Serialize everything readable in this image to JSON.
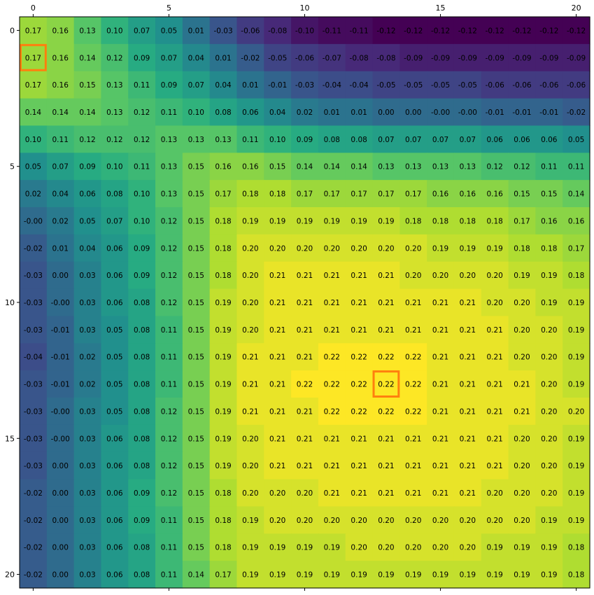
{
  "chart_data": {
    "type": "heatmap",
    "title": "",
    "xlabel": "",
    "ylabel": "",
    "x_axis_position": "top",
    "colormap": "viridis",
    "value_range": [
      -0.12,
      0.22
    ],
    "x_tick_labels": [
      "0",
      "5",
      "10",
      "15",
      "20"
    ],
    "x_tick_values": [
      0,
      5,
      10,
      15,
      20
    ],
    "y_tick_labels": [
      "0",
      "5",
      "10",
      "15",
      "20"
    ],
    "y_tick_values": [
      0,
      5,
      10,
      15,
      20
    ],
    "grid": false,
    "highlight_color": "#ff7f0e",
    "highlighted_cells": [
      {
        "row": 1,
        "col": 0
      },
      {
        "row": 13,
        "col": 13
      }
    ],
    "values": [
      [
        "0.17",
        "0.16",
        "0.13",
        "0.10",
        "0.07",
        "0.05",
        "0.01",
        "-0.03",
        "-0.06",
        "-0.08",
        "-0.10",
        "-0.11",
        "-0.11",
        "-0.12",
        "-0.12",
        "-0.12",
        "-0.12",
        "-0.12",
        "-0.12",
        "-0.12",
        "-0.12"
      ],
      [
        "0.17",
        "0.16",
        "0.14",
        "0.12",
        "0.09",
        "0.07",
        "0.04",
        "0.01",
        "-0.02",
        "-0.05",
        "-0.06",
        "-0.07",
        "-0.08",
        "-0.08",
        "-0.09",
        "-0.09",
        "-0.09",
        "-0.09",
        "-0.09",
        "-0.09",
        "-0.09"
      ],
      [
        "0.17",
        "0.16",
        "0.15",
        "0.13",
        "0.11",
        "0.09",
        "0.07",
        "0.04",
        "0.01",
        "-0.01",
        "-0.03",
        "-0.04",
        "-0.04",
        "-0.05",
        "-0.05",
        "-0.05",
        "-0.05",
        "-0.06",
        "-0.06",
        "-0.06",
        "-0.06"
      ],
      [
        "0.14",
        "0.14",
        "0.14",
        "0.13",
        "0.12",
        "0.11",
        "0.10",
        "0.08",
        "0.06",
        "0.04",
        "0.02",
        "0.01",
        "0.01",
        "0.00",
        "0.00",
        "-0.00",
        "-0.00",
        "-0.01",
        "-0.01",
        "-0.01",
        "-0.02"
      ],
      [
        "0.10",
        "0.11",
        "0.12",
        "0.12",
        "0.12",
        "0.13",
        "0.13",
        "0.13",
        "0.11",
        "0.10",
        "0.09",
        "0.08",
        "0.08",
        "0.07",
        "0.07",
        "0.07",
        "0.07",
        "0.06",
        "0.06",
        "0.06",
        "0.05"
      ],
      [
        "0.05",
        "0.07",
        "0.09",
        "0.10",
        "0.11",
        "0.13",
        "0.15",
        "0.16",
        "0.16",
        "0.15",
        "0.14",
        "0.14",
        "0.14",
        "0.13",
        "0.13",
        "0.13",
        "0.13",
        "0.12",
        "0.12",
        "0.11",
        "0.11"
      ],
      [
        "0.02",
        "0.04",
        "0.06",
        "0.08",
        "0.10",
        "0.13",
        "0.15",
        "0.17",
        "0.18",
        "0.18",
        "0.17",
        "0.17",
        "0.17",
        "0.17",
        "0.17",
        "0.16",
        "0.16",
        "0.16",
        "0.15",
        "0.15",
        "0.14"
      ],
      [
        "-0.00",
        "0.02",
        "0.05",
        "0.07",
        "0.10",
        "0.12",
        "0.15",
        "0.18",
        "0.19",
        "0.19",
        "0.19",
        "0.19",
        "0.19",
        "0.19",
        "0.18",
        "0.18",
        "0.18",
        "0.18",
        "0.17",
        "0.16",
        "0.16"
      ],
      [
        "-0.02",
        "0.01",
        "0.04",
        "0.06",
        "0.09",
        "0.12",
        "0.15",
        "0.18",
        "0.20",
        "0.20",
        "0.20",
        "0.20",
        "0.20",
        "0.20",
        "0.20",
        "0.19",
        "0.19",
        "0.19",
        "0.18",
        "0.18",
        "0.17"
      ],
      [
        "-0.03",
        "0.00",
        "0.03",
        "0.06",
        "0.09",
        "0.12",
        "0.15",
        "0.18",
        "0.20",
        "0.21",
        "0.21",
        "0.21",
        "0.21",
        "0.21",
        "0.20",
        "0.20",
        "0.20",
        "0.20",
        "0.19",
        "0.19",
        "0.18"
      ],
      [
        "-0.03",
        "-0.00",
        "0.03",
        "0.06",
        "0.08",
        "0.12",
        "0.15",
        "0.19",
        "0.20",
        "0.21",
        "0.21",
        "0.21",
        "0.21",
        "0.21",
        "0.21",
        "0.21",
        "0.21",
        "0.20",
        "0.20",
        "0.19",
        "0.19"
      ],
      [
        "-0.03",
        "-0.01",
        "0.03",
        "0.05",
        "0.08",
        "0.11",
        "0.15",
        "0.19",
        "0.20",
        "0.21",
        "0.21",
        "0.21",
        "0.21",
        "0.21",
        "0.21",
        "0.21",
        "0.21",
        "0.21",
        "0.20",
        "0.20",
        "0.19"
      ],
      [
        "-0.04",
        "-0.01",
        "0.02",
        "0.05",
        "0.08",
        "0.11",
        "0.15",
        "0.19",
        "0.21",
        "0.21",
        "0.21",
        "0.22",
        "0.22",
        "0.22",
        "0.22",
        "0.21",
        "0.21",
        "0.21",
        "0.20",
        "0.20",
        "0.19"
      ],
      [
        "-0.03",
        "-0.01",
        "0.02",
        "0.05",
        "0.08",
        "0.11",
        "0.15",
        "0.19",
        "0.21",
        "0.21",
        "0.22",
        "0.22",
        "0.22",
        "0.22",
        "0.22",
        "0.21",
        "0.21",
        "0.21",
        "0.21",
        "0.20",
        "0.19"
      ],
      [
        "-0.03",
        "-0.00",
        "0.03",
        "0.05",
        "0.08",
        "0.12",
        "0.15",
        "0.19",
        "0.21",
        "0.21",
        "0.21",
        "0.22",
        "0.22",
        "0.22",
        "0.22",
        "0.21",
        "0.21",
        "0.21",
        "0.21",
        "0.20",
        "0.20"
      ],
      [
        "-0.03",
        "-0.00",
        "0.03",
        "0.06",
        "0.08",
        "0.12",
        "0.15",
        "0.19",
        "0.20",
        "0.21",
        "0.21",
        "0.21",
        "0.21",
        "0.21",
        "0.21",
        "0.21",
        "0.21",
        "0.21",
        "0.20",
        "0.20",
        "0.19"
      ],
      [
        "-0.03",
        "0.00",
        "0.03",
        "0.06",
        "0.08",
        "0.12",
        "0.15",
        "0.19",
        "0.20",
        "0.21",
        "0.21",
        "0.21",
        "0.21",
        "0.21",
        "0.21",
        "0.21",
        "0.21",
        "0.21",
        "0.20",
        "0.20",
        "0.19"
      ],
      [
        "-0.02",
        "0.00",
        "0.03",
        "0.06",
        "0.09",
        "0.12",
        "0.15",
        "0.18",
        "0.20",
        "0.20",
        "0.20",
        "0.21",
        "0.21",
        "0.21",
        "0.21",
        "0.21",
        "0.21",
        "0.20",
        "0.20",
        "0.20",
        "0.19"
      ],
      [
        "-0.02",
        "0.00",
        "0.03",
        "0.06",
        "0.09",
        "0.11",
        "0.15",
        "0.18",
        "0.19",
        "0.20",
        "0.20",
        "0.20",
        "0.20",
        "0.20",
        "0.20",
        "0.20",
        "0.20",
        "0.20",
        "0.20",
        "0.19",
        "0.19"
      ],
      [
        "-0.02",
        "0.00",
        "0.03",
        "0.06",
        "0.08",
        "0.11",
        "0.15",
        "0.18",
        "0.19",
        "0.19",
        "0.19",
        "0.19",
        "0.20",
        "0.20",
        "0.20",
        "0.20",
        "0.20",
        "0.19",
        "0.19",
        "0.19",
        "0.18"
      ],
      [
        "-0.02",
        "0.00",
        "0.03",
        "0.06",
        "0.08",
        "0.11",
        "0.14",
        "0.17",
        "0.19",
        "0.19",
        "0.19",
        "0.19",
        "0.19",
        "0.19",
        "0.19",
        "0.19",
        "0.19",
        "0.19",
        "0.19",
        "0.19",
        "0.18"
      ]
    ]
  }
}
